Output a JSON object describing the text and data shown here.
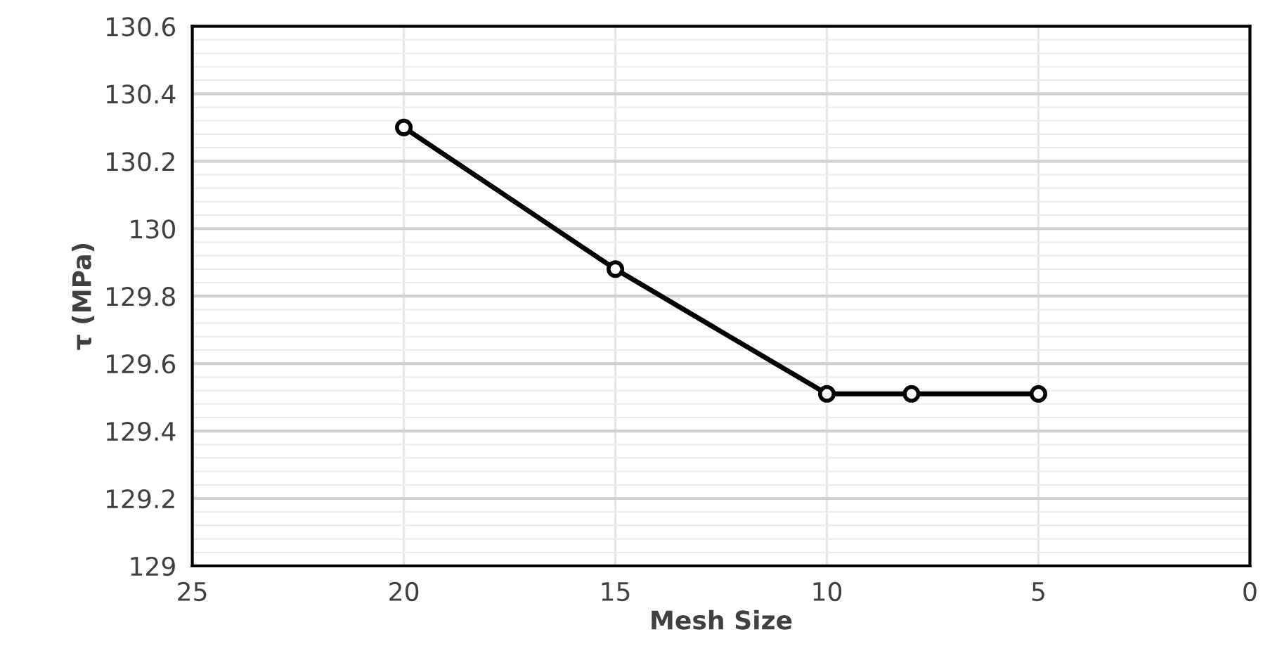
{
  "chart_data": {
    "type": "line",
    "xlabel": "Mesh Size",
    "ylabel": "τ (MPa)",
    "x": [
      20,
      15,
      10,
      8,
      5
    ],
    "series": [
      {
        "color": "#000000",
        "values": [
          130.3,
          129.88,
          129.51,
          129.51,
          129.51
        ]
      }
    ],
    "xlim": [
      25,
      0
    ],
    "xticks": [
      25,
      20,
      15,
      10,
      5,
      0
    ],
    "ylim": [
      129,
      130.6
    ],
    "yticks": [
      {
        "value": 129,
        "label": "129"
      },
      {
        "value": 129.2,
        "label": "129.2"
      },
      {
        "value": 129.4,
        "label": "129.4"
      },
      {
        "value": 129.6,
        "label": "129.6"
      },
      {
        "value": 129.8,
        "label": "129.8"
      },
      {
        "value": 130,
        "label": "130"
      },
      {
        "value": 130.2,
        "label": "130.2"
      },
      {
        "value": 130.4,
        "label": "130.4"
      },
      {
        "value": 130.6,
        "label": "130.6"
      }
    ],
    "grid": true,
    "marker": "circle",
    "line_style": "solid",
    "legend": false
  }
}
